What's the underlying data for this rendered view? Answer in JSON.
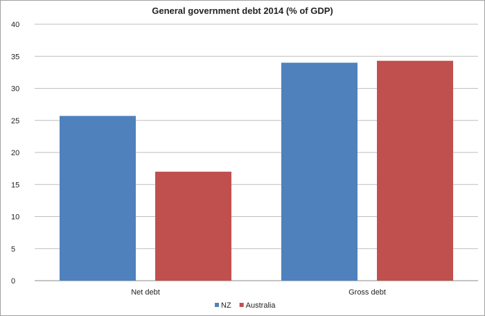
{
  "chart_data": {
    "type": "bar",
    "title": "General government debt  2014 (% of GDP)",
    "categories": [
      "Net debt",
      "Gross debt"
    ],
    "series": [
      {
        "name": "NZ",
        "color": "#4f81bd",
        "values": [
          25.7,
          34.0
        ]
      },
      {
        "name": "Australia",
        "color": "#c0504d",
        "values": [
          17.0,
          34.3
        ]
      }
    ],
    "ylim": [
      0,
      40
    ],
    "yticks": [
      0,
      5,
      10,
      15,
      20,
      25,
      30,
      35,
      40
    ],
    "grid": true,
    "legend": "bottom"
  }
}
